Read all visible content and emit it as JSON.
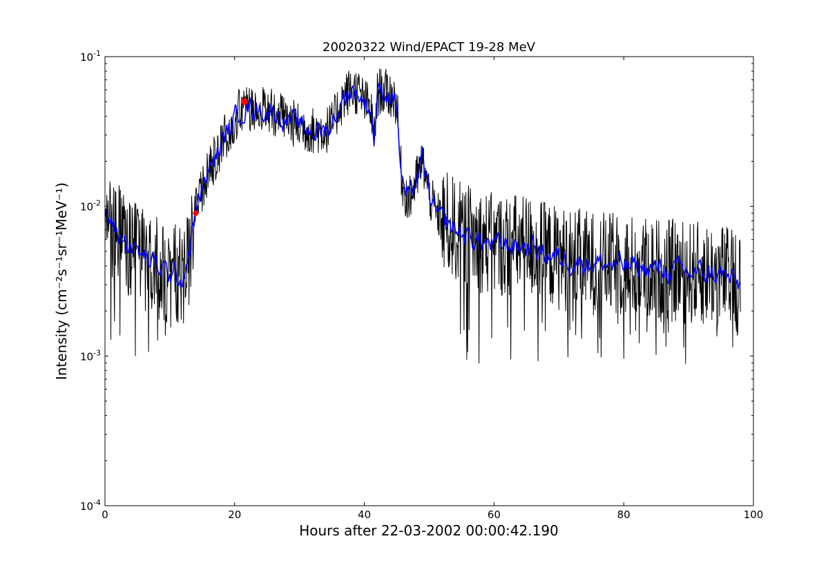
{
  "chart_data": {
    "type": "line",
    "title": "20020322 Wind/EPACT 19-28 MeV",
    "xlabel": "Hours after 22-03-2002 00:00:42.190",
    "ylabel": "Intensity (cm⁻²s⁻¹sr⁻¹MeV⁻¹)",
    "xlim": [
      0,
      100
    ],
    "ylim": [
      0.0001,
      0.1
    ],
    "yscale": "log",
    "grid": false,
    "x_ticks": [
      "0",
      "20",
      "40",
      "60",
      "80",
      "100"
    ],
    "y_ticks": [
      {
        "base": "10",
        "exp": "-4",
        "value": 0.0001
      },
      {
        "base": "10",
        "exp": "-3",
        "value": 0.001
      },
      {
        "base": "10",
        "exp": "-2",
        "value": 0.01
      },
      {
        "base": "10",
        "exp": "-1",
        "value": 0.1
      }
    ],
    "colors": {
      "raw": "#000000",
      "smoothed": "#0000ff",
      "markers": "#ff0000"
    },
    "series": [
      {
        "name": "",
        "color": "#000000",
        "style": "noisy",
        "x": [
          0,
          2,
          4,
          6,
          8,
          10,
          12,
          13,
          14,
          15,
          16,
          18,
          20,
          21,
          22,
          24,
          26,
          28,
          30,
          32,
          34,
          35,
          36,
          37,
          38,
          39,
          40,
          41,
          41.5,
          42,
          42.5,
          43,
          44,
          45,
          45.5,
          46,
          47,
          48,
          49,
          50,
          51,
          52,
          55,
          60,
          65,
          70,
          75,
          80,
          85,
          90,
          95,
          98
        ],
        "y": [
          0.009,
          0.0065,
          0.0055,
          0.0045,
          0.004,
          0.0035,
          0.0033,
          0.005,
          0.009,
          0.013,
          0.017,
          0.026,
          0.038,
          0.045,
          0.046,
          0.044,
          0.043,
          0.038,
          0.034,
          0.032,
          0.032,
          0.035,
          0.045,
          0.055,
          0.06,
          0.058,
          0.05,
          0.045,
          0.028,
          0.055,
          0.06,
          0.058,
          0.056,
          0.05,
          0.02,
          0.013,
          0.011,
          0.015,
          0.02,
          0.012,
          0.009,
          0.008,
          0.0065,
          0.0055,
          0.0055,
          0.0045,
          0.0042,
          0.004,
          0.0038,
          0.0036,
          0.0035,
          0.003
        ]
      },
      {
        "name": "",
        "color": "#0000ff",
        "style": "smooth",
        "x": [
          0,
          2,
          4,
          6,
          8,
          10,
          12,
          13,
          14,
          15,
          16,
          18,
          20,
          21,
          22,
          24,
          26,
          28,
          30,
          32,
          34,
          35,
          36,
          37,
          38,
          39,
          40,
          41,
          41.5,
          42,
          42.5,
          43,
          44,
          45,
          45.5,
          46,
          47,
          48,
          49,
          50,
          51,
          52,
          55,
          60,
          65,
          70,
          75,
          80,
          85,
          90,
          95,
          98
        ],
        "y": [
          0.009,
          0.0065,
          0.0055,
          0.0045,
          0.004,
          0.0035,
          0.0033,
          0.005,
          0.009,
          0.013,
          0.017,
          0.026,
          0.038,
          0.045,
          0.046,
          0.044,
          0.043,
          0.038,
          0.034,
          0.032,
          0.032,
          0.035,
          0.045,
          0.055,
          0.06,
          0.058,
          0.05,
          0.045,
          0.028,
          0.055,
          0.06,
          0.058,
          0.056,
          0.05,
          0.02,
          0.013,
          0.011,
          0.015,
          0.02,
          0.012,
          0.009,
          0.008,
          0.0065,
          0.0055,
          0.0055,
          0.0045,
          0.0042,
          0.004,
          0.0038,
          0.0036,
          0.0035,
          0.003
        ]
      }
    ],
    "markers": [
      {
        "x": 14.0,
        "y": 0.009
      },
      {
        "x": 21.5,
        "y": 0.05
      }
    ]
  }
}
